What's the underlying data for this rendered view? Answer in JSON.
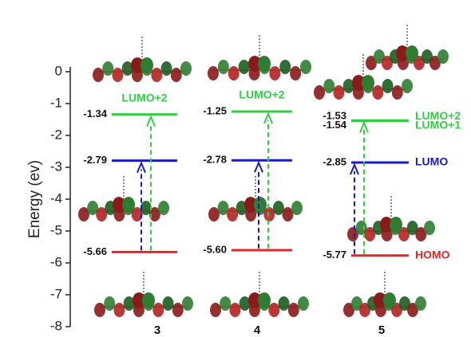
{
  "chart_data": {
    "type": "energy-levels",
    "ylabel": "Energy (ev)",
    "categories": [
      "3",
      "4",
      "5"
    ],
    "ylim": [
      -8,
      0
    ],
    "yticks": [
      0,
      -1,
      -2,
      -3,
      -4,
      -5,
      -6,
      -7,
      -8
    ],
    "series": [
      {
        "name": "LUMO+2",
        "color": "#33cc44",
        "values": [
          -1.34,
          -1.25,
          -1.53
        ],
        "value_labels": [
          "-1.34",
          "-1.25",
          "-1.53"
        ],
        "show_name": [
          true,
          true,
          true
        ]
      },
      {
        "name": "LUMO+1",
        "color": "#33cc44",
        "values": [
          null,
          null,
          -1.54
        ],
        "value_labels": [
          null,
          null,
          "-1.54"
        ],
        "show_name": [
          false,
          false,
          true
        ]
      },
      {
        "name": "LUMO",
        "color": "#1a1ac8",
        "values": [
          -2.79,
          -2.78,
          -2.85
        ],
        "value_labels": [
          "-2.79",
          "-2.78",
          "-2.85"
        ],
        "show_name": [
          false,
          false,
          true
        ]
      },
      {
        "name": "HOMO",
        "color": "#e02828",
        "values": [
          -5.66,
          -5.6,
          -5.77
        ],
        "value_labels": [
          "-5.66",
          "-5.60",
          "-5.77"
        ],
        "show_name": [
          false,
          false,
          true
        ]
      }
    ]
  }
}
